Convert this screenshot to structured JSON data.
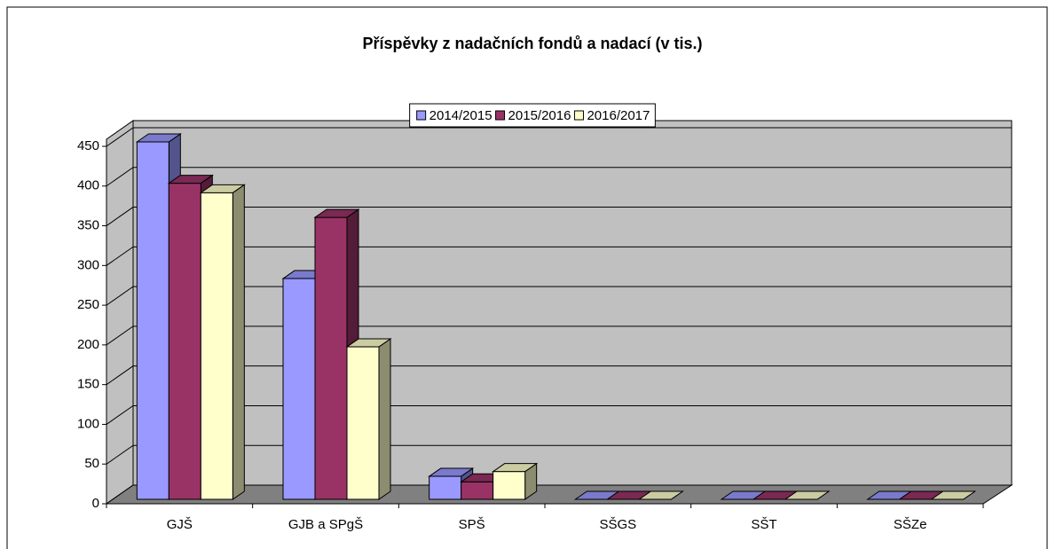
{
  "chart_data": {
    "type": "bar3d",
    "title": "Příspěvky z nadačních fondů a nadací (v tis.)",
    "categories": [
      "GJŠ",
      "GJB a SPgŠ",
      "SPŠ",
      "SŠGS",
      "SŠT",
      "SŠZe"
    ],
    "series": [
      {
        "name": "2014/2015",
        "color": "#9999ff",
        "values": [
          450,
          278,
          29,
          0,
          0,
          0
        ]
      },
      {
        "name": "2015/2016",
        "color": "#993366",
        "values": [
          398,
          355,
          22,
          0,
          0,
          0
        ]
      },
      {
        "name": "2016/2017",
        "color": "#ffffcc",
        "values": [
          386,
          192,
          35,
          0,
          0,
          0
        ]
      }
    ],
    "ylim": [
      0,
      450
    ],
    "yticks": [
      0,
      50,
      100,
      150,
      200,
      250,
      300,
      350,
      400,
      450
    ],
    "grid": true,
    "legend": "top"
  }
}
